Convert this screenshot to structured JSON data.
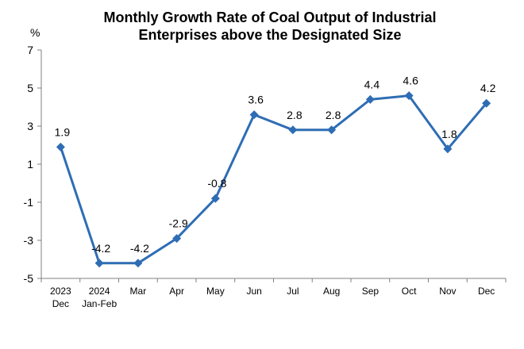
{
  "chart_data": {
    "type": "line",
    "title_lines": [
      "Monthly Growth Rate of Coal Output of Industrial",
      "Enterprises above the Designated Size"
    ],
    "ylabel": "%",
    "categories": [
      [
        "2023",
        "Dec"
      ],
      [
        "2024",
        "Jan-Feb"
      ],
      [
        "Mar"
      ],
      [
        "Apr"
      ],
      [
        "May"
      ],
      [
        "Jun"
      ],
      [
        "Jul"
      ],
      [
        "Aug"
      ],
      [
        "Sep"
      ],
      [
        "Oct"
      ],
      [
        "Nov"
      ],
      [
        "Dec"
      ]
    ],
    "values": [
      1.9,
      -4.2,
      -4.2,
      -2.9,
      -0.8,
      3.6,
      2.8,
      2.8,
      4.4,
      4.6,
      1.8,
      4.2
    ],
    "data_labels": [
      "1.9",
      "-4.2",
      "-4.2",
      "-2.9",
      "-0.8",
      "3.6",
      "2.8",
      "2.8",
      "4.4",
      "4.6",
      "1.8",
      "4.2"
    ],
    "yticks": [
      7,
      5,
      3,
      1,
      -1,
      -3,
      -5
    ],
    "ylim": [
      -5,
      7
    ],
    "grid": false,
    "legend": "none",
    "line_color": "#2E6DB4",
    "marker": "diamond"
  }
}
